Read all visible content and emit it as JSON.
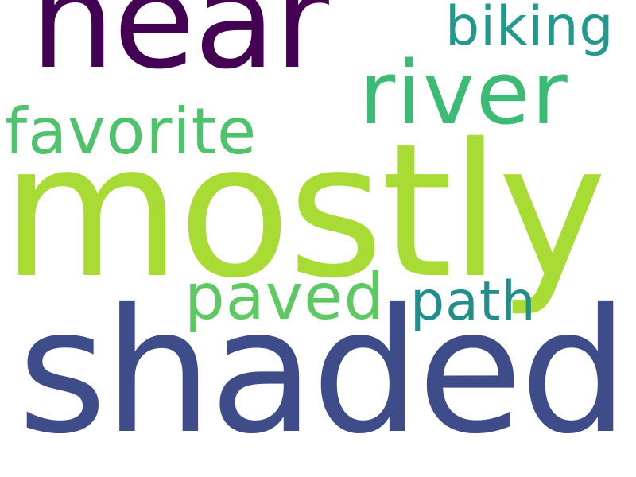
{
  "words": {
    "near": {
      "text": "near",
      "color": "#440154"
    },
    "biking": {
      "text": "biking",
      "color": "#21998c"
    },
    "river": {
      "text": "river",
      "color": "#3cbb75"
    },
    "favorite": {
      "text": "favorite",
      "color": "#4ec36b"
    },
    "mostly": {
      "text": "mostly",
      "color": "#a8db34"
    },
    "paved": {
      "text": "paved",
      "color": "#5ec962"
    },
    "path": {
      "text": "path",
      "color": "#208f8c"
    },
    "shaded": {
      "text": "shaded",
      "color": "#3e4c8a"
    }
  }
}
